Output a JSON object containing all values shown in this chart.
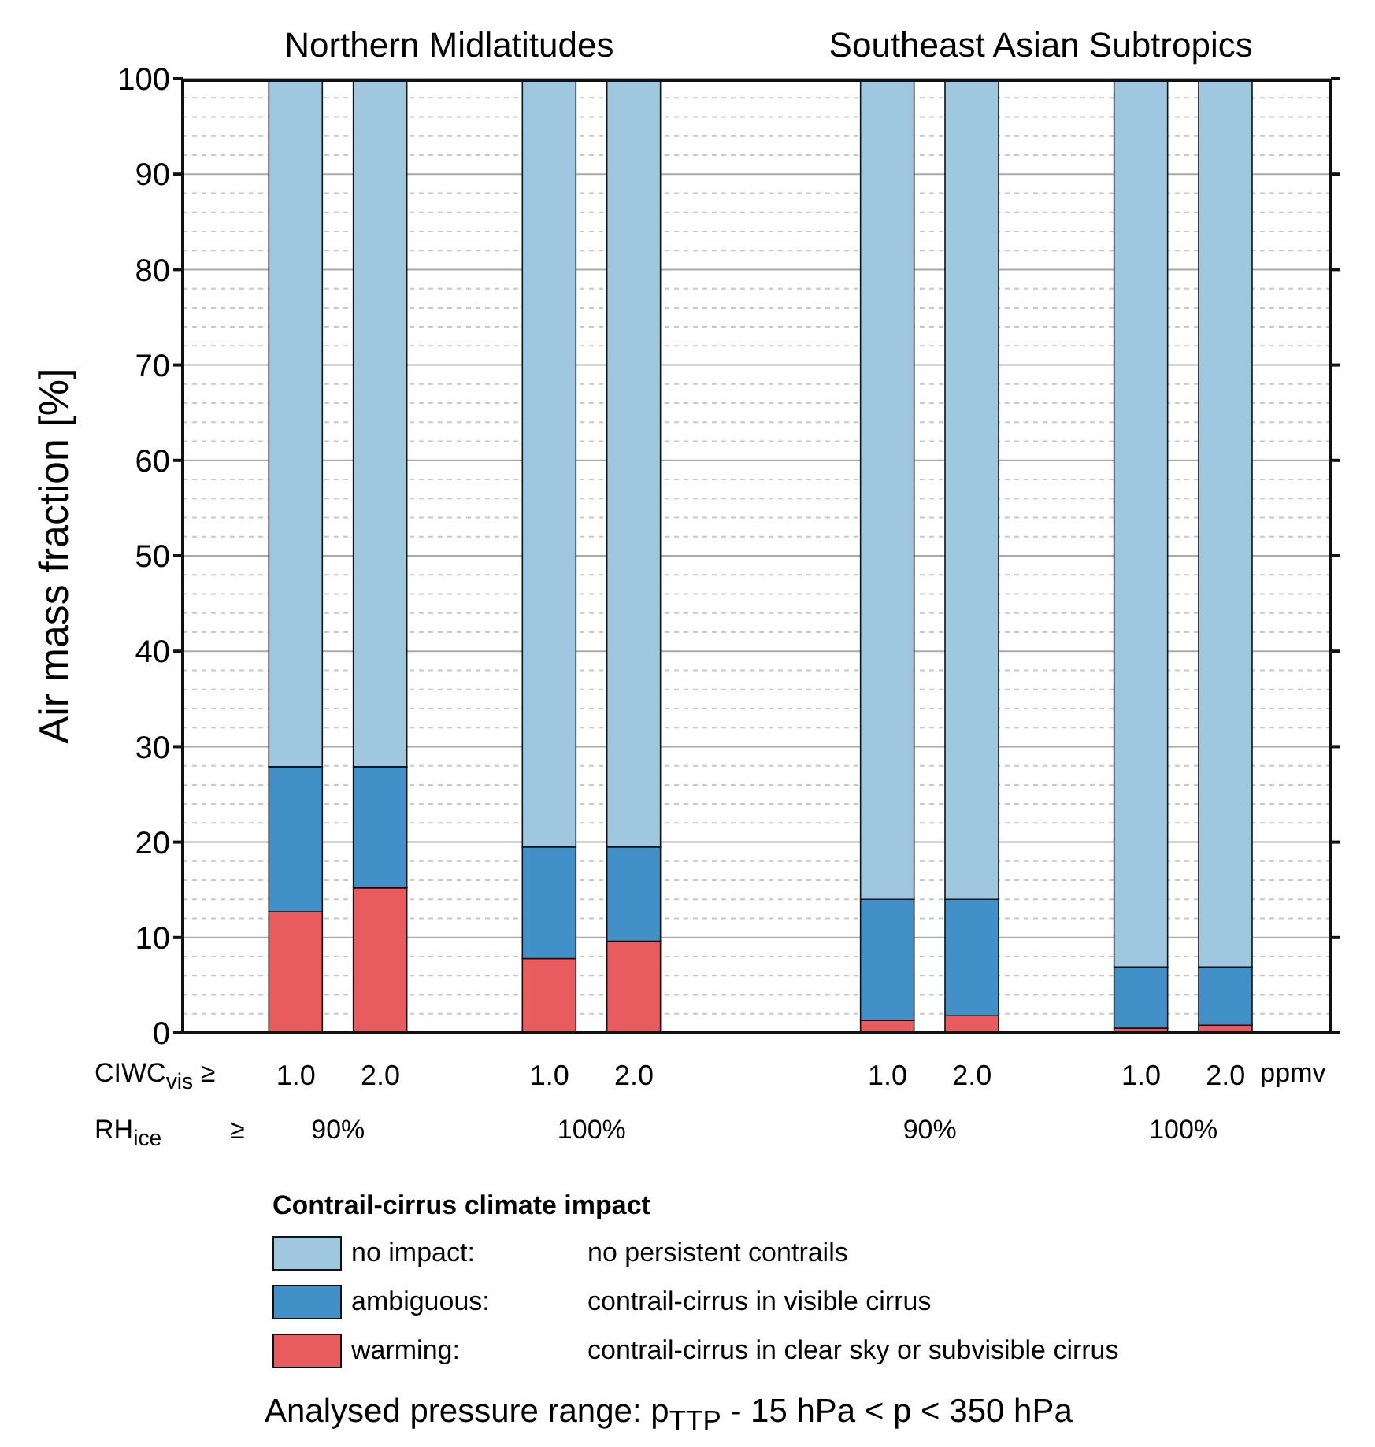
{
  "chart_data": {
    "type": "bar",
    "stacked": true,
    "ylabel": "Air mass fraction [%]",
    "legend_title": "Contrail-cirrus climate impact",
    "legend": "bottom",
    "grid": "y",
    "categories": [
      "1.0",
      "2.0",
      null,
      "1.0",
      "2.0",
      null,
      null,
      "1.0",
      "2.0",
      null,
      "1.0",
      "2.0"
    ],
    "series": [
      {
        "name": "warming:",
        "color": "#e85c60",
        "values": [
          12.7,
          15.2,
          null,
          7.8,
          9.6,
          null,
          null,
          1.3,
          1.8,
          null,
          0.5,
          0.8
        ]
      },
      {
        "name": "ambiguous:",
        "color": "#4190c8",
        "values": [
          15.2,
          12.7,
          null,
          11.7,
          9.9,
          null,
          null,
          12.7,
          12.2,
          null,
          6.4,
          6.1
        ]
      },
      {
        "name": "no impact:",
        "color": "#9fc8e0",
        "values": [
          72.1,
          72.1,
          null,
          80.5,
          80.5,
          null,
          null,
          86.0,
          86.0,
          null,
          93.1,
          93.1
        ]
      }
    ],
    "ylim": [
      0,
      100
    ],
    "yticks": [
      0,
      10,
      20,
      30,
      40,
      50,
      60,
      70,
      80,
      90,
      100
    ],
    "annotations": [
      "CIWC$_{vis}$ ≥",
      "ppmv",
      "RH$_{ice}$",
      "≥",
      "90%",
      "100%",
      "90%",
      "100%",
      "Northern Midlatitudes",
      "Southeast Asian Subtropics",
      "contrail-cirrus in clear sky or subvisible cirrus",
      "contrail-cirrus in visible cirrus",
      "no persistent contrails",
      "Analysed pressure range: p$_{TTP}$ - 15 hPa < p < 350 hPa"
    ]
  }
}
